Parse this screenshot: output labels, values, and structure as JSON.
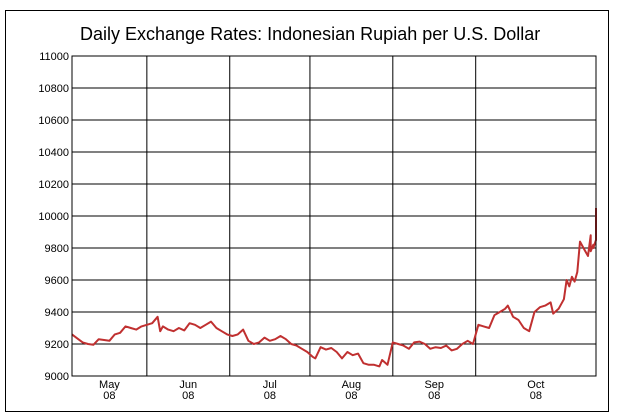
{
  "chart_data": {
    "type": "line",
    "title": "Daily Exchange Rates: Indonesian Rupiah per U.S. Dollar",
    "xlabel": "",
    "ylabel": "",
    "ylim": [
      9000,
      11000
    ],
    "yticks": [
      9000,
      9200,
      9400,
      9600,
      9800,
      10000,
      10200,
      10400,
      10600,
      10800,
      11000
    ],
    "xlim": [
      "2008-04-18",
      "2008-10-31"
    ],
    "grid": true,
    "months": [
      {
        "label": "May",
        "year": "08"
      },
      {
        "label": "Jun",
        "year": "08"
      },
      {
        "label": "Jul",
        "year": "08"
      },
      {
        "label": "Aug",
        "year": "08"
      },
      {
        "label": "Sep",
        "year": "08"
      },
      {
        "label": "Oct",
        "year": "08"
      }
    ],
    "month_boundaries": [
      "2008-05-16",
      "2008-06-16",
      "2008-07-16",
      "2008-08-16",
      "2008-09-16"
    ],
    "line_color": "#c03030",
    "series": [
      {
        "points": [
          [
            "2008-04-18",
            9260
          ],
          [
            "2008-04-20",
            9235
          ],
          [
            "2008-04-22",
            9210
          ],
          [
            "2008-04-24",
            9200
          ],
          [
            "2008-04-26",
            9195
          ],
          [
            "2008-04-28",
            9230
          ],
          [
            "2008-04-30",
            9225
          ],
          [
            "2008-05-02",
            9220
          ],
          [
            "2008-05-04",
            9260
          ],
          [
            "2008-05-06",
            9270
          ],
          [
            "2008-05-08",
            9310
          ],
          [
            "2008-05-10",
            9300
          ],
          [
            "2008-05-12",
            9290
          ],
          [
            "2008-05-14",
            9310
          ],
          [
            "2008-05-16",
            9320
          ],
          [
            "2008-05-18",
            9330
          ],
          [
            "2008-05-20",
            9370
          ],
          [
            "2008-05-21",
            9280
          ],
          [
            "2008-05-22",
            9310
          ],
          [
            "2008-05-24",
            9290
          ],
          [
            "2008-05-26",
            9280
          ],
          [
            "2008-05-28",
            9300
          ],
          [
            "2008-05-30",
            9285
          ],
          [
            "2008-06-01",
            9330
          ],
          [
            "2008-06-03",
            9320
          ],
          [
            "2008-06-05",
            9300
          ],
          [
            "2008-06-07",
            9320
          ],
          [
            "2008-06-09",
            9340
          ],
          [
            "2008-06-11",
            9300
          ],
          [
            "2008-06-13",
            9280
          ],
          [
            "2008-06-15",
            9260
          ],
          [
            "2008-06-17",
            9250
          ],
          [
            "2008-06-19",
            9260
          ],
          [
            "2008-06-21",
            9290
          ],
          [
            "2008-06-23",
            9220
          ],
          [
            "2008-06-25",
            9200
          ],
          [
            "2008-06-27",
            9210
          ],
          [
            "2008-06-29",
            9240
          ],
          [
            "2008-07-01",
            9220
          ],
          [
            "2008-07-03",
            9230
          ],
          [
            "2008-07-05",
            9250
          ],
          [
            "2008-07-07",
            9230
          ],
          [
            "2008-07-09",
            9200
          ],
          [
            "2008-07-11",
            9190
          ],
          [
            "2008-07-13",
            9170
          ],
          [
            "2008-07-15",
            9150
          ],
          [
            "2008-07-17",
            9120
          ],
          [
            "2008-07-18",
            9110
          ],
          [
            "2008-07-20",
            9180
          ],
          [
            "2008-07-22",
            9165
          ],
          [
            "2008-07-24",
            9175
          ],
          [
            "2008-07-26",
            9150
          ],
          [
            "2008-07-28",
            9110
          ],
          [
            "2008-07-30",
            9150
          ],
          [
            "2008-08-01",
            9130
          ],
          [
            "2008-08-03",
            9140
          ],
          [
            "2008-08-05",
            9080
          ],
          [
            "2008-08-07",
            9070
          ],
          [
            "2008-08-09",
            9070
          ],
          [
            "2008-08-11",
            9060
          ],
          [
            "2008-08-12",
            9100
          ],
          [
            "2008-08-14",
            9070
          ],
          [
            "2008-08-16",
            9210
          ],
          [
            "2008-08-18",
            9200
          ],
          [
            "2008-08-20",
            9190
          ],
          [
            "2008-08-22",
            9170
          ],
          [
            "2008-08-24",
            9210
          ],
          [
            "2008-08-26",
            9215
          ],
          [
            "2008-08-28",
            9200
          ],
          [
            "2008-08-30",
            9170
          ],
          [
            "2008-09-01",
            9180
          ],
          [
            "2008-09-03",
            9175
          ],
          [
            "2008-09-05",
            9190
          ],
          [
            "2008-09-07",
            9160
          ],
          [
            "2008-09-09",
            9170
          ],
          [
            "2008-09-11",
            9200
          ],
          [
            "2008-09-13",
            9220
          ],
          [
            "2008-09-15",
            9200
          ],
          [
            "2008-09-17",
            9320
          ],
          [
            "2008-09-19",
            9310
          ],
          [
            "2008-09-21",
            9300
          ],
          [
            "2008-09-23",
            9380
          ],
          [
            "2008-09-25",
            9400
          ],
          [
            "2008-09-27",
            9420
          ],
          [
            "2008-09-28",
            9440
          ],
          [
            "2008-09-30",
            9370
          ],
          [
            "2008-10-02",
            9350
          ],
          [
            "2008-10-04",
            9300
          ],
          [
            "2008-10-06",
            9280
          ],
          [
            "2008-10-08",
            9400
          ],
          [
            "2008-10-10",
            9430
          ],
          [
            "2008-10-12",
            9440
          ],
          [
            "2008-10-14",
            9460
          ],
          [
            "2008-10-15",
            9390
          ],
          [
            "2008-10-17",
            9420
          ],
          [
            "2008-10-19",
            9480
          ],
          [
            "2008-10-20",
            9600
          ],
          [
            "2008-10-21",
            9560
          ],
          [
            "2008-10-22",
            9620
          ],
          [
            "2008-10-23",
            9590
          ],
          [
            "2008-10-24",
            9650
          ],
          [
            "2008-10-25",
            9840
          ],
          [
            "2008-10-26",
            9810
          ],
          [
            "2008-10-27",
            9780
          ],
          [
            "2008-10-28",
            9750
          ],
          [
            "2008-10-29",
            9880
          ],
          [
            "2008-10-29",
            9780
          ],
          [
            "2008-10-30",
            9820
          ],
          [
            "2008-10-30",
            9800
          ],
          [
            "2008-10-31",
            9850
          ],
          [
            "2008-10-31",
            9950
          ],
          [
            "2008-10-31",
            10000
          ],
          [
            "2008-10-31",
            10050
          ]
        ]
      }
    ]
  }
}
